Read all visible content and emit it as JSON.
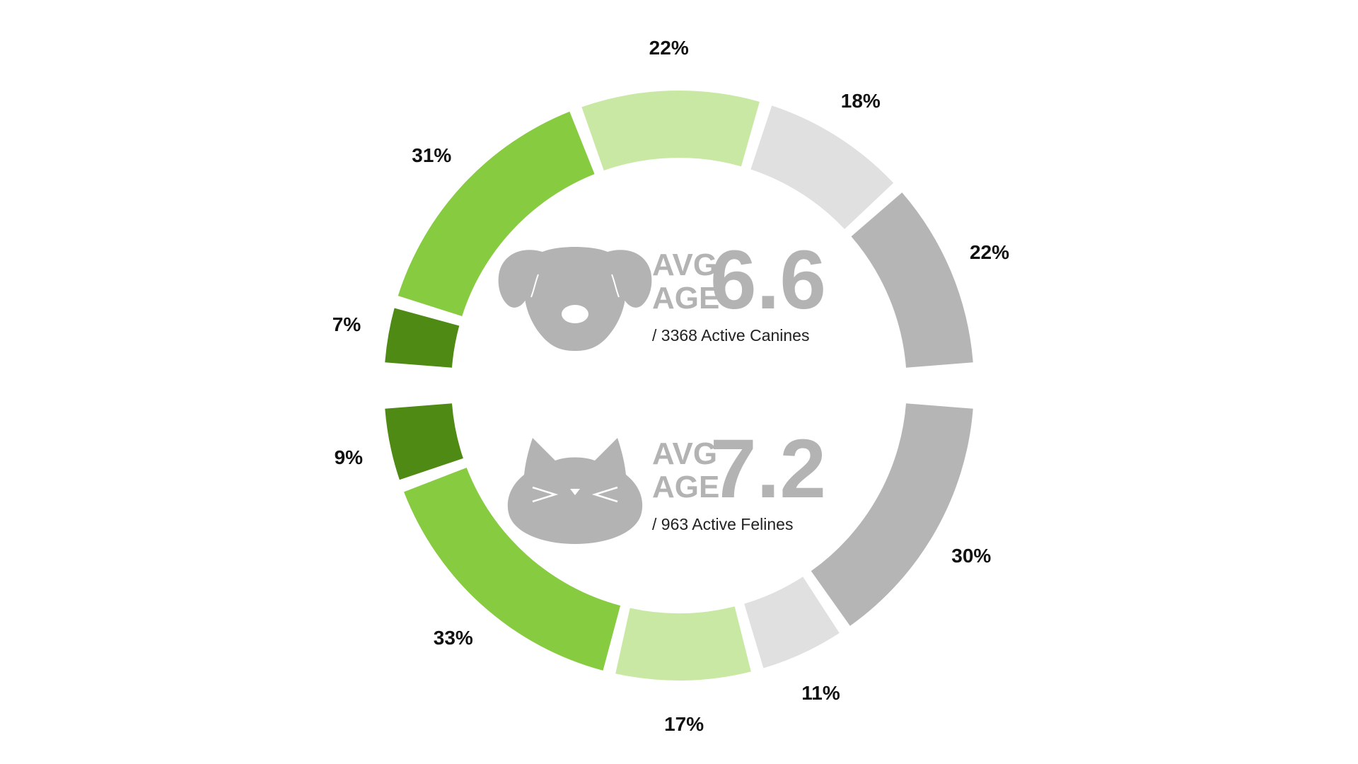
{
  "colors": {
    "dark_green": "#4e8a14",
    "green": "#86cb40",
    "light_green": "#c9e8a4",
    "light_gray": "#e0e0e0",
    "gray": "#b5b5b5",
    "icon_gray": "#b3b3b3"
  },
  "chart_data": [
    {
      "type": "donut",
      "half": "top",
      "segment_order": "left-to-right",
      "values": [
        7,
        31,
        22,
        18,
        22
      ],
      "labels": [
        "7%",
        "31%",
        "22%",
        "18%",
        "22%"
      ],
      "segment_colors": [
        "dark_green",
        "green",
        "light_green",
        "light_gray",
        "gray"
      ],
      "center": {
        "icon": "dog-icon",
        "avg_label_1": "AVG",
        "avg_label_2": "AGE",
        "avg_value": "6.6",
        "caption": "/ 3368 Active Canines"
      }
    },
    {
      "type": "donut",
      "half": "bottom",
      "segment_order": "left-to-right",
      "values": [
        9,
        33,
        17,
        11,
        30
      ],
      "labels": [
        "9%",
        "33%",
        "17%",
        "11%",
        "30%"
      ],
      "segment_colors": [
        "dark_green",
        "green",
        "light_green",
        "light_gray",
        "gray"
      ],
      "center": {
        "icon": "cat-icon",
        "avg_label_1": "AVG",
        "avg_label_2": "AGE",
        "avg_value": "7.2",
        "caption": "/ 963 Active Felines"
      }
    }
  ]
}
